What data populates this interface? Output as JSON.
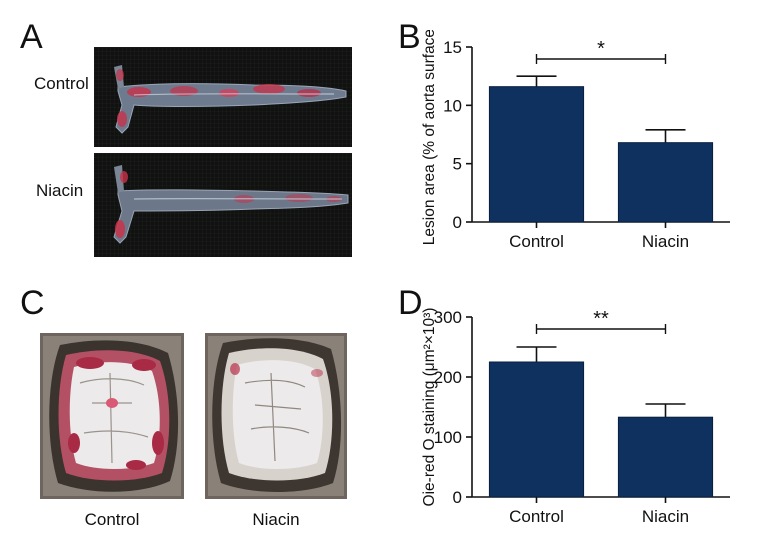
{
  "panels": {
    "a": {
      "label": "A",
      "rows": [
        "Control",
        "Niacin"
      ]
    },
    "b": {
      "label": "B"
    },
    "c": {
      "label": "C",
      "captions": [
        "Control",
        "Niacin"
      ]
    },
    "d": {
      "label": "D"
    }
  },
  "colors": {
    "bar": "#0f3160",
    "tissue_stain": "#c8324a",
    "tissue_lumen": "#eceaea",
    "photo_background": "#131313"
  },
  "chart_data": [
    {
      "type": "bar",
      "panel": "B",
      "categories": [
        "Control",
        "Niacin"
      ],
      "values": [
        11.6,
        6.8
      ],
      "error": [
        0.9,
        1.1
      ],
      "ylabel": "Lesion area (% of aorta surface)",
      "ylim": [
        0,
        15
      ],
      "yticks": [
        "0",
        "5",
        "10",
        "15"
      ],
      "significance": "*",
      "grid": false
    },
    {
      "type": "bar",
      "panel": "D",
      "categories": [
        "Control",
        "Niacin"
      ],
      "values": [
        225,
        133
      ],
      "error": [
        25,
        22
      ],
      "ylabel": "Oie-red O staining (μm²×10³)",
      "ylim": [
        0,
        300
      ],
      "yticks": [
        "0",
        "100",
        "200",
        "300"
      ],
      "significance": "**",
      "grid": false
    }
  ]
}
